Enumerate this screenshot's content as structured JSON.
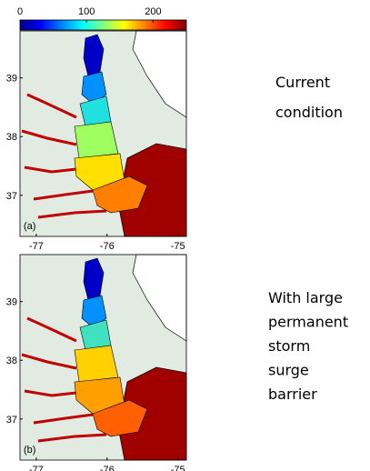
{
  "colorbar": {
    "lim": [
      0,
      250
    ],
    "ticks": [
      0,
      100,
      200
    ]
  },
  "map": {
    "xlim": [
      -77.23,
      -74.88
    ],
    "ylim": [
      36.3,
      39.8
    ],
    "xticks": [
      -77,
      -76,
      -75
    ],
    "yticks": [
      39,
      38,
      37
    ]
  },
  "panels": [
    {
      "label": "(a)",
      "caption": [
        "Current",
        "condition"
      ]
    },
    {
      "label": "(b)",
      "caption": [
        "With large",
        "permanent",
        "storm",
        "surge",
        "barrier"
      ]
    }
  ]
}
